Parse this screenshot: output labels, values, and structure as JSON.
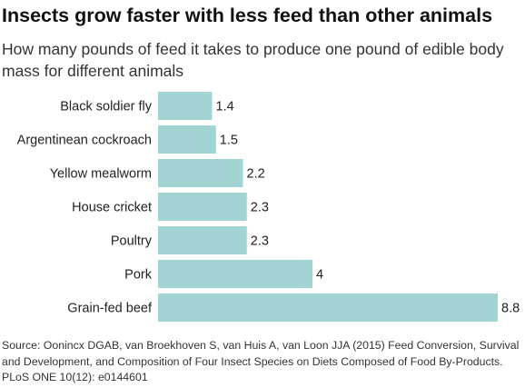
{
  "title": "Insects grow faster with less feed than other animals",
  "subtitle": "How many pounds of feed it takes to produce one pound of edible body mass for different animals",
  "source": "Source: Oonincx DGAB, van Broekhoven S, van Huis A, van Loon JJA (2015) Feed Conversion, Survival and Development, and Composition of Four Insect Species on Diets Composed of Food By-Products. PLoS ONE 10(12): e0144601",
  "colors": {
    "bar": "#a3d4d4",
    "text": "#222222"
  },
  "chart_data": {
    "type": "bar",
    "orientation": "horizontal",
    "title": "Insects grow faster with less feed than other animals",
    "xlabel": "",
    "ylabel": "",
    "categories": [
      "Black soldier fly",
      "Argentinean cockroach",
      "Yellow mealworm",
      "House cricket",
      "Poultry",
      "Pork",
      "Grain-fed beef"
    ],
    "values": [
      1.4,
      1.5,
      2.2,
      2.3,
      2.3,
      4,
      8.8
    ],
    "value_labels": [
      "1.4",
      "1.5",
      "2.2",
      "2.3",
      "2.3",
      "4",
      "8.8"
    ],
    "xlim": [
      0,
      8.8
    ],
    "grid": false,
    "legend": "none"
  }
}
